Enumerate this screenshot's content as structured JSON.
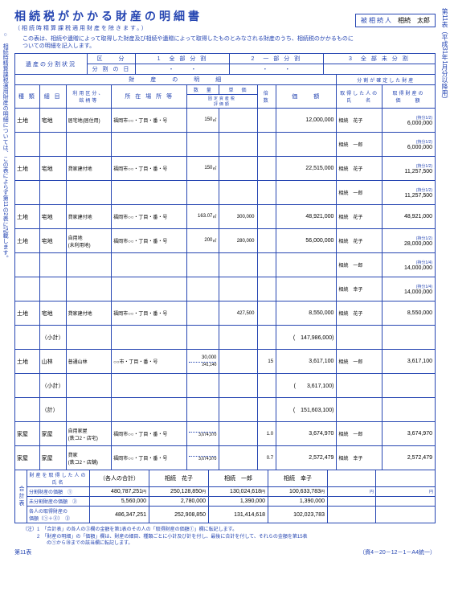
{
  "doc": {
    "title": "相続税がかかる財産の明細書",
    "subtitle": "（相続時精算課税適用財産を除きます。）",
    "heir_label": "被相続人",
    "heir_name": "相続　太郎",
    "side_right": "第11表（平成31年1月分以降用）",
    "side_left": "○　相続時精算課税適用財産の明細については、この表によらず第11の2表に記載します。",
    "note_top": "この表は、相続や遺贈によって取得した財産及び相続や遺贈によって取得したものとみなされる財産のうち、相続税のかかるものに\nついての明細を記入します。",
    "footnote": "（注）1　「合計表」の各人の③欄の金額を第1表のその人の「取得財産の価額①」欄に転記します。\n　　　2　「財産の明細」の「価額」欄は、財産の細目、種類ごとに小計及び計を付し、最後に合計を付して、それらの金額を第15表\n　　　　　の①から㉘までの該当欄に転記します。",
    "form_left": "第11表",
    "form_right": "（資4－20－12－1－A4統一）"
  },
  "head": {
    "estate_division": "遺産の分割状況",
    "kubun": "区　　分",
    "k1": "1　全 部 分 割",
    "k2": "2　一 部 分 割",
    "k3": "3　全 部 未 分 割",
    "division_date": "分 割 の 日",
    "dot1": "・　　　・",
    "dot2": "・　　　・",
    "zaisan_meisai": "財　　産　　の　　明　　細",
    "bunkatsu_kakutei": "分割が確定した財産",
    "shurui": "種 類",
    "saimoku": "細 目",
    "riyou": "利用区分、\n銘柄等",
    "shozai": "所 在 場 所 等",
    "suuryou": "数　量",
    "tanka": "単　価",
    "baisu_header": "倍 数",
    "kagaku": "価　　額",
    "shutoku_name": "取得した人の\n氏　　名",
    "shutoku_value": "取得財産の\n価　　額",
    "fixed_dec_header": "固定資産税\n評価額"
  },
  "rows": [
    {
      "shurui": "土地",
      "saimoku": "宅地",
      "riyou": "居宅地(居住用)",
      "shozai": "福岡市○○・丁目・番・号",
      "qty": "150",
      "unit_sup": "㎡",
      "tanka": "",
      "baisu": "",
      "kagaku": "12,000,000",
      "name": "相続　花子",
      "note": "(持分1/2)",
      "val": "6,000,000"
    },
    {
      "shurui": "",
      "saimoku": "",
      "riyou": "",
      "shozai": "",
      "qty": "",
      "tanka": "",
      "baisu": "",
      "kagaku": "",
      "name": "相続　一郎",
      "note": "(持分1/2)",
      "val": "6,000,000"
    },
    {
      "shurui": "土地",
      "saimoku": "宅地",
      "riyou": "貸家建付地",
      "shozai": "福岡市○○・丁目・番・号",
      "qty": "150",
      "unit_sup": "㎡",
      "tanka": "",
      "baisu": "",
      "kagaku": "22,515,000",
      "name": "相続　花子",
      "note": "(持分1/2)",
      "val": "11,257,500"
    },
    {
      "shurui": "",
      "saimoku": "",
      "riyou": "",
      "shozai": "",
      "qty": "",
      "tanka": "",
      "baisu": "",
      "kagaku": "",
      "name": "相続　一郎",
      "note": "(持分1/2)",
      "val": "11,257,500"
    },
    {
      "shurui": "土地",
      "saimoku": "宅地",
      "riyou": "貸家建付地",
      "shozai": "福岡市○○・丁目・番・号",
      "qty": "163.07",
      "unit_sup": "㎡",
      "tanka": "300,000",
      "baisu": "",
      "kagaku": "48,921,000",
      "name": "相続　花子",
      "note": "",
      "val": "48,921,000"
    },
    {
      "shurui": "土地",
      "saimoku": "宅地",
      "riyou": "自用地\n(未利用地)",
      "shozai": "福岡市○○・丁目・番・号",
      "qty": "200",
      "unit_sup": "㎡",
      "tanka": "280,000",
      "baisu": "",
      "kagaku": "56,000,000",
      "name": "相続　花子",
      "note": "(持分1/2)",
      "val": "28,000,000"
    },
    {
      "shurui": "",
      "saimoku": "",
      "riyou": "",
      "shozai": "",
      "qty": "",
      "tanka": "",
      "baisu": "",
      "kagaku": "",
      "name": "相続　一郎",
      "note": "(持分1/4)",
      "val": "14,000,000"
    },
    {
      "shurui": "",
      "saimoku": "",
      "riyou": "",
      "shozai": "",
      "qty": "",
      "tanka": "",
      "baisu": "",
      "kagaku": "",
      "name": "相続　幸子",
      "note": "(持分1/4)",
      "val": "14,000,000"
    },
    {
      "shurui": "土地",
      "saimoku": "宅地",
      "riyou": "貸家建付地",
      "shozai": "福岡市○○・丁目・番・号",
      "qty": "",
      "tanka": "427,500",
      "baisu": "",
      "kagaku": "8,550,000",
      "name": "相続　花子",
      "note": "",
      "val": "8,550,000"
    },
    {
      "shurui": "",
      "saimoku": "（小計）",
      "riyou": "",
      "shozai": "",
      "qty": "",
      "tanka": "",
      "baisu": "",
      "kagaku": "(　147,986,000)",
      "name": "",
      "note": "",
      "val": ""
    },
    {
      "shurui": "土地",
      "saimoku": "山林",
      "riyou": "普通山林",
      "shozai": "○○市・丁目・番・号",
      "qty": "30,000",
      "unit_sup": "",
      "tanka": "",
      "baisu": "15",
      "fixed": "241,140",
      "kagaku": "3,617,100",
      "name": "相続　一郎",
      "note": "",
      "val": "3,617,100"
    },
    {
      "shurui": "",
      "saimoku": "（小計）",
      "riyou": "",
      "shozai": "",
      "qty": "",
      "tanka": "",
      "baisu": "",
      "kagaku": "(　　3,617,100)",
      "name": "",
      "note": "",
      "val": ""
    },
    {
      "shurui": "",
      "saimoku": "（計）",
      "riyou": "",
      "shozai": "",
      "qty": "",
      "tanka": "",
      "baisu": "",
      "kagaku": "(　151,603,100)",
      "name": "",
      "note": "",
      "val": ""
    },
    {
      "shurui": "家屋",
      "saimoku": "家屋",
      "riyou": "自用家屋\n(鉄コ2・店宅)",
      "shozai": "福岡市○○・丁目・番・号",
      "qty": "",
      "tanka": "",
      "baisu": "1.0",
      "fixed": "3,674,970",
      "kagaku": "3,674,970",
      "name": "相続　一郎",
      "note": "",
      "val": "3,674,970"
    },
    {
      "shurui": "家屋",
      "saimoku": "家屋",
      "riyou": "貸家\n(鉄コ2・店舗)",
      "shozai": "福岡市○○・丁目・番・号",
      "qty": "",
      "tanka": "",
      "baisu": "0.7",
      "fixed": "3,674,970",
      "kagaku": "2,572,479",
      "name": "相続　幸子",
      "note": "",
      "val": "2,572,479"
    }
  ],
  "sum": {
    "label_side": "合計表",
    "row_label": "財産を取得した人の氏名",
    "col_all": "（各人の合計）",
    "names": [
      "相続　花子",
      "相続　一郎",
      "相続　幸子"
    ],
    "r1_label": "分割財産の価額",
    "r1_num": "①",
    "r1": [
      "480,787,251",
      "250,128,850",
      "130,024,618",
      "100,633,783"
    ],
    "r2_label": "未分割財産の価額",
    "r2_num": "②",
    "r2": [
      "5,560,000",
      "2,780,000",
      "1,390,000",
      "1,390,000"
    ],
    "r3_label": "各人の取得財産の\n価額（①＋②）",
    "r3_num": "③",
    "r3": [
      "486,347,251",
      "252,908,850",
      "131,414,618",
      "102,023,783"
    ]
  }
}
